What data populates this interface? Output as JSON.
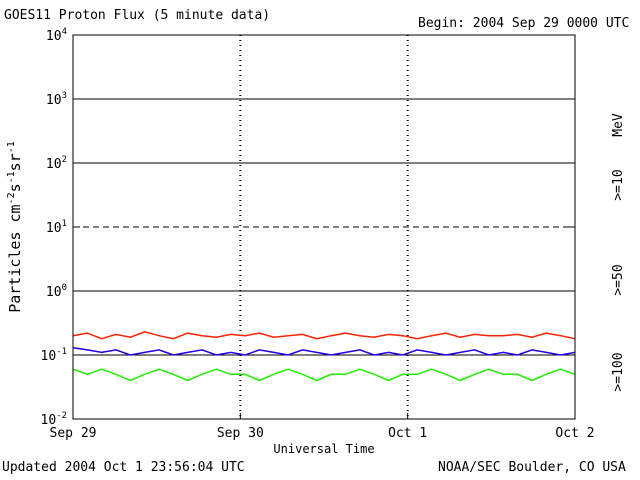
{
  "header": {
    "title": "GOES11 Proton Flux (5 minute data)",
    "begin": "Begin: 2004 Sep 29 0000 UTC"
  },
  "footer": {
    "updated": "Updated 2004 Oct  1 23:56:04 UTC",
    "credit": "NOAA/SEC Boulder, CO USA"
  },
  "chart_data": {
    "type": "line",
    "title": "GOES11 Proton Flux (5 minute data)",
    "xlabel": "Universal Time",
    "ylabel": "Particles cm-2s-1sr-1",
    "yscale": "log",
    "ylim": [
      0.01,
      10000
    ],
    "xlim": [
      "2004-09-29T00:00",
      "2004-10-02T00:00"
    ],
    "x_ticks": [
      "Sep 29",
      "Sep 30",
      "Oct 1",
      "Oct 2"
    ],
    "y_ticks": [
      {
        "base": "10",
        "exp": "-2",
        "value": 0.01
      },
      {
        "base": "10",
        "exp": "-1",
        "value": 0.1
      },
      {
        "base": "10",
        "exp": "0",
        "value": 1
      },
      {
        "base": "10",
        "exp": "1",
        "value": 10
      },
      {
        "base": "10",
        "exp": "2",
        "value": 100
      },
      {
        "base": "10",
        "exp": "3",
        "value": 1000
      },
      {
        "base": "10",
        "exp": "4",
        "value": 10000
      }
    ],
    "threshold_line": 10,
    "legend_unit": "MeV",
    "series": [
      {
        "name": ">=10",
        "color": "#ff2200",
        "values": [
          0.2,
          0.22,
          0.18,
          0.21,
          0.19,
          0.23,
          0.2,
          0.18,
          0.22,
          0.2,
          0.19,
          0.21,
          0.2,
          0.22,
          0.19,
          0.2,
          0.21,
          0.18,
          0.2,
          0.22,
          0.2,
          0.19,
          0.21,
          0.2,
          0.18,
          0.2,
          0.22,
          0.19,
          0.21,
          0.2,
          0.2,
          0.21,
          0.19,
          0.22,
          0.2,
          0.18
        ]
      },
      {
        "name": ">=50",
        "color": "#2200ee",
        "values": [
          0.13,
          0.12,
          0.11,
          0.12,
          0.1,
          0.11,
          0.12,
          0.1,
          0.11,
          0.12,
          0.1,
          0.11,
          0.1,
          0.12,
          0.11,
          0.1,
          0.12,
          0.11,
          0.1,
          0.11,
          0.12,
          0.1,
          0.11,
          0.1,
          0.12,
          0.11,
          0.1,
          0.11,
          0.12,
          0.1,
          0.11,
          0.1,
          0.12,
          0.11,
          0.1,
          0.11
        ]
      },
      {
        "name": ">=100",
        "color": "#22ee00",
        "values": [
          0.06,
          0.05,
          0.06,
          0.05,
          0.04,
          0.05,
          0.06,
          0.05,
          0.04,
          0.05,
          0.06,
          0.05,
          0.05,
          0.04,
          0.05,
          0.06,
          0.05,
          0.04,
          0.05,
          0.05,
          0.06,
          0.05,
          0.04,
          0.05,
          0.05,
          0.06,
          0.05,
          0.04,
          0.05,
          0.06,
          0.05,
          0.05,
          0.04,
          0.05,
          0.06,
          0.05
        ]
      }
    ]
  }
}
